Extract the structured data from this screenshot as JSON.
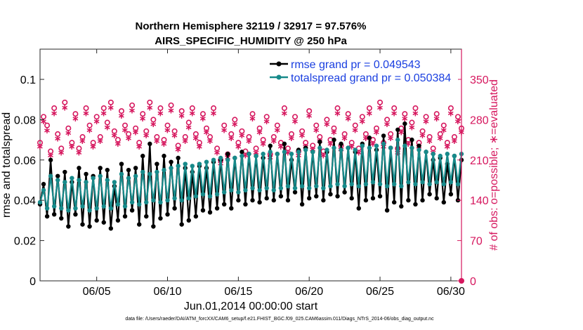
{
  "chart_data": {
    "type": "line",
    "title_line1": "Northern Hemisphere 32119 / 32917 = 97.576%",
    "title_line2": "AIRS_SPECIFIC_HUMIDITY @ 250 hPa",
    "xlabel": "Jun.01,2014 00:00:00 start",
    "ylabel_left": "rmse and totalspread",
    "ylabel_right": "# of obs: o=possible; ∗=evaluated",
    "xlim": [
      1,
      30.75
    ],
    "ylim_left": [
      0,
      0.115
    ],
    "ylim_right": [
      0,
      402.5
    ],
    "x_ticks": [
      5,
      10,
      15,
      20,
      25,
      30
    ],
    "x_tick_labels": [
      "06/05",
      "06/10",
      "06/15",
      "06/20",
      "06/25",
      "06/30"
    ],
    "y_ticks_left": [
      0,
      0.02,
      0.04,
      0.06,
      0.08,
      0.1
    ],
    "y_tick_labels_left": [
      "0",
      "0.02",
      "0.04",
      "0.06",
      "0.08",
      "0.1"
    ],
    "y_ticks_right": [
      0,
      70,
      140,
      210,
      280,
      350
    ],
    "y_tick_labels_right": [
      "0",
      "70",
      "140",
      "210",
      "280",
      "350"
    ],
    "legend": {
      "position": "top-right",
      "rmse_label": "rmse grand pr = 0.049543",
      "spread_label": "totalspread grand pr = 0.050384"
    },
    "colors": {
      "rmse": "#000000",
      "spread": "#178a8a",
      "obs": "#d6175e"
    },
    "x_start": 1,
    "x_step": 0.25,
    "series": [
      {
        "name": "rmse",
        "values": [
          0.038,
          0.048,
          0.032,
          0.06,
          0.033,
          0.052,
          0.031,
          0.054,
          0.027,
          0.049,
          0.033,
          0.056,
          0.028,
          0.053,
          0.027,
          0.052,
          0.03,
          0.056,
          0.029,
          0.055,
          0.026,
          0.047,
          0.03,
          0.058,
          0.032,
          0.055,
          0.035,
          0.056,
          0.028,
          0.062,
          0.032,
          0.068,
          0.027,
          0.058,
          0.031,
          0.062,
          0.033,
          0.059,
          0.036,
          0.061,
          0.028,
          0.056,
          0.03,
          0.054,
          0.032,
          0.057,
          0.035,
          0.056,
          0.034,
          0.059,
          0.036,
          0.06,
          0.038,
          0.063,
          0.036,
          0.061,
          0.04,
          0.064,
          0.038,
          0.063,
          0.04,
          0.062,
          0.039,
          0.061,
          0.041,
          0.067,
          0.04,
          0.063,
          0.042,
          0.068,
          0.04,
          0.06,
          0.044,
          0.065,
          0.038,
          0.066,
          0.041,
          0.064,
          0.042,
          0.069,
          0.04,
          0.064,
          0.043,
          0.07,
          0.042,
          0.068,
          0.044,
          0.066,
          0.041,
          0.064,
          0.036,
          0.068,
          0.04,
          0.071,
          0.041,
          0.065,
          0.042,
          0.072,
          0.035,
          0.066,
          0.039,
          0.075,
          0.037,
          0.078,
          0.04,
          0.07,
          0.038,
          0.067,
          0.04,
          0.064,
          0.043,
          0.06,
          0.041,
          0.061,
          0.039,
          0.058,
          0.043,
          0.062,
          0.04,
          0.06
        ],
        "points": [
          0.05,
          0.07,
          0.05,
          0.07,
          0.05
        ]
      },
      {
        "name": "totalspread",
        "values": [
          0.039,
          0.045,
          0.036,
          0.052,
          0.037,
          0.05,
          0.036,
          0.049,
          0.035,
          0.051,
          0.036,
          0.05,
          0.037,
          0.049,
          0.035,
          0.051,
          0.036,
          0.052,
          0.037,
          0.05,
          0.036,
          0.049,
          0.038,
          0.053,
          0.037,
          0.051,
          0.039,
          0.052,
          0.038,
          0.054,
          0.039,
          0.053,
          0.04,
          0.054,
          0.039,
          0.055,
          0.04,
          0.056,
          0.041,
          0.057,
          0.04,
          0.058,
          0.041,
          0.057,
          0.042,
          0.058,
          0.043,
          0.059,
          0.042,
          0.06,
          0.043,
          0.061,
          0.044,
          0.06,
          0.045,
          0.061,
          0.044,
          0.062,
          0.045,
          0.063,
          0.046,
          0.062,
          0.045,
          0.063,
          0.046,
          0.064,
          0.045,
          0.063,
          0.046,
          0.064,
          0.047,
          0.063,
          0.046,
          0.064,
          0.047,
          0.065,
          0.046,
          0.064,
          0.047,
          0.066,
          0.046,
          0.065,
          0.047,
          0.066,
          0.048,
          0.065,
          0.047,
          0.066,
          0.048,
          0.065,
          0.047,
          0.067,
          0.048,
          0.066,
          0.049,
          0.067,
          0.048,
          0.068,
          0.047,
          0.066,
          0.048,
          0.07,
          0.047,
          0.067,
          0.049,
          0.066,
          0.048,
          0.065,
          0.049,
          0.064,
          0.048,
          0.063,
          0.049,
          0.062,
          0.048,
          0.063,
          0.049,
          0.062,
          0.048,
          0.063
        ]
      },
      {
        "name": "obs_possible",
        "values": [
          240,
          285,
          270,
          225,
          300,
          255,
          230,
          310,
          265,
          240,
          290,
          230,
          250,
          300,
          270,
          240,
          285,
          250,
          300,
          275,
          310,
          260,
          245,
          295,
          270,
          255,
          305,
          265,
          240,
          290,
          260,
          310,
          280,
          250,
          300,
          245,
          270,
          305,
          260,
          235,
          295,
          250,
          275,
          300,
          255,
          240,
          290,
          265,
          250,
          300,
          230,
          210,
          270,
          220,
          255,
          280,
          240,
          260,
          225,
          250,
          290,
          230,
          265,
          245,
          285,
          220,
          250,
          270,
          240,
          300,
          230,
          255,
          285,
          225,
          260,
          240,
          295,
          235,
          270,
          250,
          225,
          280,
          245,
          265,
          300,
          235,
          255,
          290,
          240,
          270,
          230,
          285,
          255,
          300,
          245,
          265,
          310,
          240,
          280,
          255,
          300,
          230,
          265,
          290,
          245,
          275,
          300,
          240,
          260,
          285,
          250,
          230,
          290,
          255,
          270,
          240,
          300,
          250,
          285,
          265
        ],
        "points": [
          0.5,
          0.7,
          0.5
        ]
      },
      {
        "name": "obs_evaluated",
        "values": [
          234,
          278,
          262,
          219,
          292,
          248,
          224,
          302,
          258,
          234,
          283,
          224,
          244,
          292,
          263,
          234,
          278,
          244,
          292,
          268,
          302,
          254,
          239,
          288,
          263,
          249,
          297,
          259,
          234,
          283,
          254,
          302,
          273,
          244,
          292,
          239,
          263,
          297,
          254,
          229,
          288,
          244,
          268,
          292,
          249,
          234,
          283,
          259,
          244,
          292,
          224,
          205,
          263,
          215,
          249,
          273,
          234,
          254,
          219,
          244,
          283,
          224,
          259,
          239,
          278,
          215,
          244,
          263,
          234,
          292,
          224,
          249,
          278,
          219,
          254,
          234,
          288,
          229,
          263,
          244,
          219,
          273,
          239,
          259,
          292,
          229,
          249,
          283,
          234,
          263,
          224,
          278,
          249,
          292,
          239,
          259,
          302,
          234,
          273,
          249,
          292,
          224,
          259,
          283,
          239,
          268,
          292,
          234,
          254,
          278,
          244,
          224,
          283,
          249,
          263,
          234,
          292,
          244,
          278,
          259
        ]
      }
    ]
  },
  "footnote": "data file: /Users/raeder/DAI/ATM_forcXX/CAM6_setup/f.e21.FHIST_BGC.f09_025.CAM6assim.011/Diags_NTrS_2014-06/obs_diag_output.nc"
}
